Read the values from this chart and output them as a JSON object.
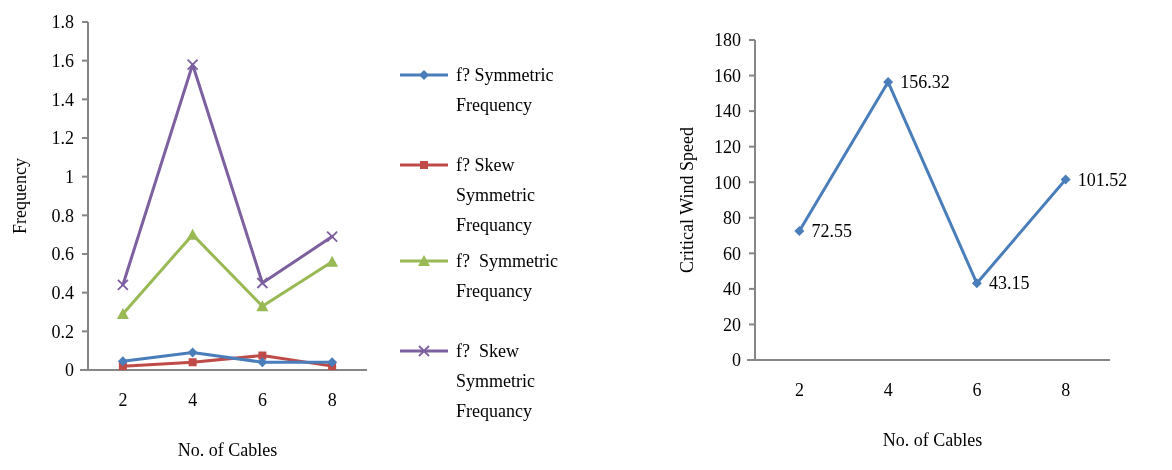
{
  "chart_data": [
    {
      "type": "line",
      "xlabel": "No. of Cables",
      "ylabel": "Frequency",
      "categories": [
        "2",
        "4",
        "6",
        "8"
      ],
      "ylim": [
        0,
        1.8
      ],
      "yticks": [
        0,
        0.2,
        0.4,
        0.6,
        0.8,
        1,
        1.2,
        1.4,
        1.6,
        1.8
      ],
      "legend": "right",
      "grid": false,
      "series": [
        {
          "name": "f? Symmetric Frequency",
          "color": "#4a7ebb",
          "marker": "diamond",
          "values": [
            0.045,
            0.09,
            0.04,
            0.04
          ]
        },
        {
          "name": "f? Skew Symmetric Frequancy",
          "color": "#be4b48",
          "marker": "square",
          "values": [
            0.02,
            0.04,
            0.075,
            0.02
          ]
        },
        {
          "name": "f?  Symmetric Frequancy",
          "color": "#98b954",
          "marker": "triangle",
          "values": [
            0.29,
            0.7,
            0.33,
            0.56
          ]
        },
        {
          "name": "f?  Skew Symmetric Frequancy",
          "color": "#7d60a0",
          "marker": "cross",
          "values": [
            0.44,
            1.58,
            0.45,
            0.69
          ]
        }
      ]
    },
    {
      "type": "line",
      "xlabel": "No. of Cables",
      "ylabel": "Critical Wind Speed",
      "categories": [
        "2",
        "4",
        "6",
        "8"
      ],
      "ylim": [
        0,
        180
      ],
      "yticks": [
        0,
        20,
        40,
        60,
        80,
        100,
        120,
        140,
        160,
        180
      ],
      "grid": false,
      "data_labels": true,
      "marker": "diamond",
      "series": [
        {
          "color": "#4a7ebb",
          "values": [
            72.55,
            156.32,
            43.15,
            101.52
          ]
        }
      ]
    }
  ]
}
